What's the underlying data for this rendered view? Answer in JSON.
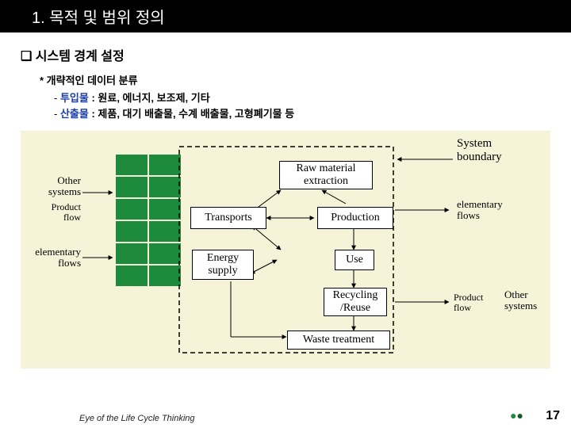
{
  "title": "1. 목적 및 범위 정의",
  "sub_heading": "❑ 시스템 경계 설정",
  "bullet_star": "* 개략적인 데이터 분류",
  "line1_label": "투입물",
  "line1_rest": " : 원료, 에너지, 보조제, 기타",
  "line2_label": "산출물",
  "line2_rest": " : 제품, 대기 배출물, 수계 배출물, 고형폐기물 등",
  "diagram": {
    "bg_color": "#f6f4d8",
    "boundary_stroke": "#000000",
    "green": "#1e8a3b",
    "box_bg": "#ffffff",
    "labels": {
      "system_boundary": "System\nboundary",
      "other_systems_l": "Other\nsystems",
      "other_systems_r": "Other\nsystems",
      "product_flow_l": "Product\nflow",
      "product_flow_r": "Product\nflow",
      "elementary_l": "elementary\nflows",
      "elementary_r": "elementary\nflows"
    },
    "boxes": {
      "raw": "Raw material\nextraction",
      "transports": "Transports",
      "energy": "Energy\nsupply",
      "production": "Production",
      "use": "Use",
      "recycling": "Recycling\n/Reuse",
      "waste": "Waste treatment"
    }
  },
  "footer": "Eye of the Life Cycle Thinking",
  "page": "17"
}
